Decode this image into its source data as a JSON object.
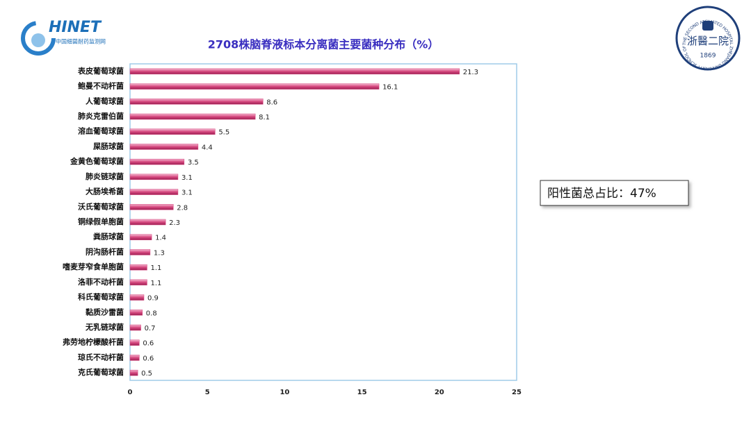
{
  "logo_left": {
    "brand": "HINET",
    "subtitle": "中国细菌耐药监测网"
  },
  "logo_right": {
    "name": "浙醫二院",
    "year": "1869",
    "ring_text": "THE SECOND AFFILIATED HOSPITAL ZHEJIANG UNIVERSITY SCHOOL OF MEDICINE"
  },
  "annotation": "阳性菌总占比：47%",
  "chart_data": {
    "type": "bar",
    "orientation": "horizontal",
    "title": "2708株脑脊液标本分离菌主要菌种分布（%）",
    "categories": [
      "表皮葡萄球菌",
      "鲍曼不动杆菌",
      "人葡萄球菌",
      "肺炎克雷伯菌",
      "溶血葡萄球菌",
      "屎肠球菌",
      "金黄色葡萄球菌",
      "肺炎链球菌",
      "大肠埃希菌",
      "沃氏葡萄球菌",
      "铜绿假单胞菌",
      "粪肠球菌",
      "阴沟肠杆菌",
      "嗜麦芽窄食单胞菌",
      "洛菲不动杆菌",
      "科氏葡萄球菌",
      "黏质沙雷菌",
      "无乳链球菌",
      "弗劳地柠檬酸杆菌",
      "琼氏不动杆菌",
      "克氏葡萄球菌"
    ],
    "values": [
      21.3,
      16.1,
      8.6,
      8.1,
      5.5,
      4.4,
      3.5,
      3.1,
      3.1,
      2.8,
      2.3,
      1.4,
      1.3,
      1.1,
      1.1,
      0.9,
      0.8,
      0.7,
      0.6,
      0.6,
      0.5
    ],
    "color": "#d6487f",
    "xlim": [
      0,
      25
    ],
    "xticks": [
      0,
      5,
      10,
      15,
      20,
      25
    ],
    "grid": false
  }
}
